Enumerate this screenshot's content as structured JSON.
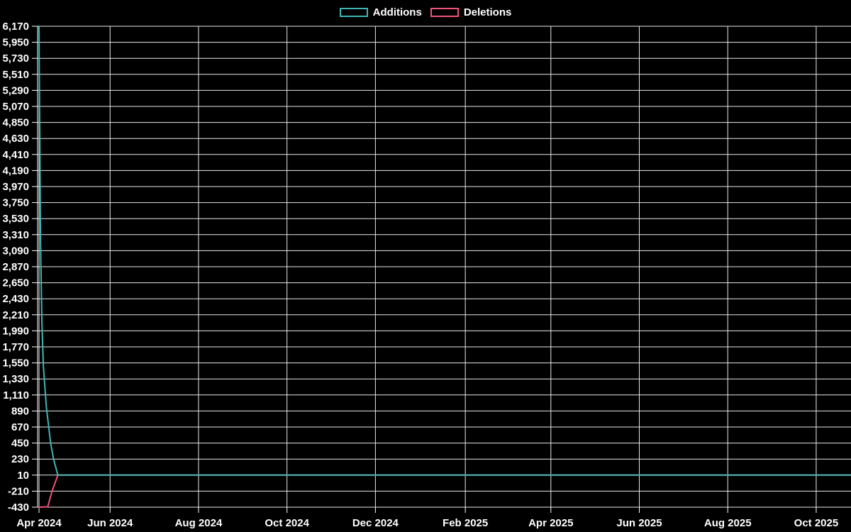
{
  "page": {
    "background": "#000000",
    "text_color": "#ffffff",
    "grid_color": "#e8e8e8",
    "axis_color": "#ffffff"
  },
  "legend": {
    "items": [
      {
        "label": "Additions",
        "color": "#3fb6b4"
      },
      {
        "label": "Deletions",
        "color": "#ef537a"
      }
    ]
  },
  "chart_data": {
    "type": "line",
    "title": "",
    "legend_position": "top-center",
    "grid": true,
    "background": "#000000",
    "x_axis": {
      "type": "time",
      "min": "2024-04-12",
      "max": "2025-10-25",
      "ticks": [
        {
          "label": "Apr 2024",
          "date": "2024-04-13"
        },
        {
          "label": "Jun 2024",
          "date": "2024-06-01"
        },
        {
          "label": "Aug 2024",
          "date": "2024-08-01"
        },
        {
          "label": "Oct 2024",
          "date": "2024-10-01"
        },
        {
          "label": "Dec 2024",
          "date": "2024-12-01"
        },
        {
          "label": "Feb 2025",
          "date": "2025-02-01"
        },
        {
          "label": "Apr 2025",
          "date": "2025-04-01"
        },
        {
          "label": "Jun 2025",
          "date": "2025-06-01"
        },
        {
          "label": "Aug 2025",
          "date": "2025-08-01"
        },
        {
          "label": "Oct 2025",
          "date": "2025-10-01"
        }
      ]
    },
    "y_axis": {
      "min": -430,
      "max": 6170,
      "interval": 220,
      "tick_labels": [
        "6,170",
        "5,950",
        "5,730",
        "5,510",
        "5,290",
        "5,070",
        "4,850",
        "4,630",
        "4,410",
        "4,190",
        "3,970",
        "3,750",
        "3,530",
        "3,310",
        "3,090",
        "2,870",
        "2,650",
        "2,430",
        "2,210",
        "1,990",
        "1,770",
        "1,550",
        "1,330",
        "1,110",
        "890",
        "670",
        "450",
        "230",
        "10",
        "-210",
        "-430"
      ]
    },
    "series": [
      {
        "name": "Deletions",
        "color": "#ef537a",
        "points": [
          [
            "2024-04-13",
            -430
          ],
          [
            "2024-04-19",
            -425
          ],
          [
            "2024-04-22",
            -210
          ],
          [
            "2024-04-26",
            10
          ],
          [
            "2025-10-25",
            10
          ]
        ]
      },
      {
        "name": "Additions",
        "color": "#3fb6b4",
        "points": [
          [
            "2024-04-13",
            6170
          ],
          [
            "2024-04-14",
            3250
          ],
          [
            "2024-04-15",
            2090
          ],
          [
            "2024-04-16",
            1500
          ],
          [
            "2024-04-18",
            950
          ],
          [
            "2024-04-21",
            450
          ],
          [
            "2024-04-23",
            230
          ],
          [
            "2024-04-26",
            10
          ],
          [
            "2025-10-25",
            10
          ]
        ]
      }
    ]
  }
}
